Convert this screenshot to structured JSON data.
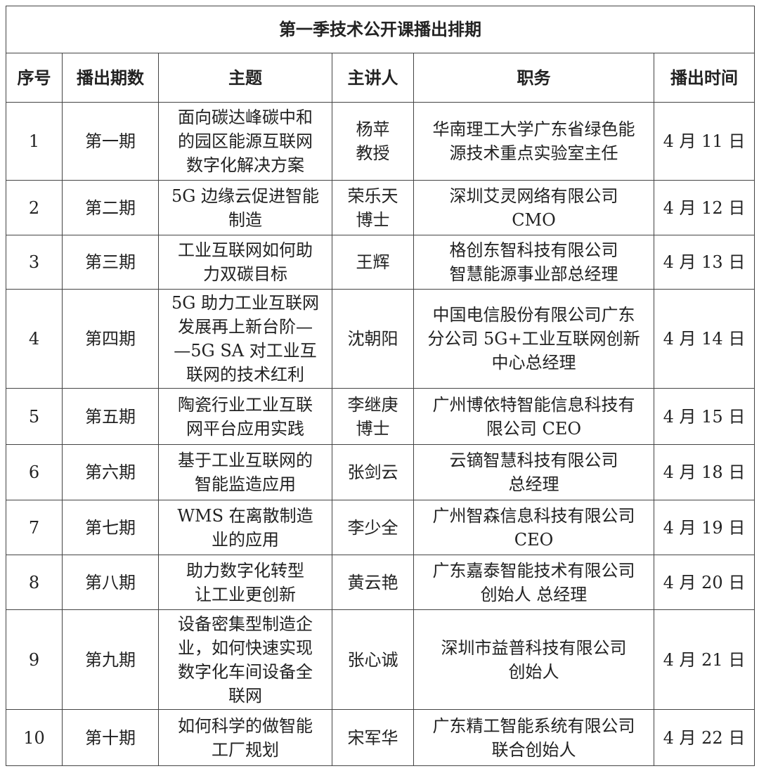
{
  "title": "第一季技术公开课播出排期",
  "headers": [
    "序号",
    "播出期数",
    "主题",
    "主讲人",
    "职务",
    "播出时间"
  ],
  "rows": [
    [
      "1",
      "第一期",
      "面向碳达峰碳中和\n的园区能源互联网\n数字化解决方案",
      "杨苹\n教授",
      "华南理工大学广东省绿色能\n源技术重点实验室主任",
      "4 月 11 日"
    ],
    [
      "2",
      "第二期",
      "5G 边缘云促进智能\n制造",
      "荣乐天\n博士",
      "深圳艾灵网络有限公司\nCMO",
      "4 月 12 日"
    ],
    [
      "3",
      "第三期",
      "工业互联网如何助\n力双碳目标",
      "王辉",
      "格创东智科技有限公司\n智慧能源事业部总经理",
      "4 月 13 日"
    ],
    [
      "4",
      "第四期",
      "5G 助力工业互联网\n发展再上新台阶—\n—5G SA 对工业互\n联网的技术红利",
      "沈朝阳",
      "中国电信股份有限公司广东\n分公司  5G+工业互联网创新\n中心总经理",
      "4 月 14 日"
    ],
    [
      "5",
      "第五期",
      "陶瓷行业工业互联\n网平台应用实践",
      "李继庚\n博士",
      "广州博依特智能信息科技有\n限公司  CEO",
      "4 月 15 日"
    ],
    [
      "6",
      "第六期",
      "基于工业互联网的\n智能监造应用",
      "张剑云",
      "云镝智慧科技有限公司\n总经理",
      "4 月 18 日"
    ],
    [
      "7",
      "第七期",
      "WMS 在离散制造\n业的应用",
      "李少全",
      "广州智森信息科技有限公司\nCEO",
      "4 月 19 日"
    ],
    [
      "8",
      "第八期",
      "助力数字化转型\n让工业更创新",
      "黄云艳",
      "广东嘉泰智能技术有限公司\n创始人  总经理",
      "4 月 20 日"
    ],
    [
      "9",
      "第九期",
      "设备密集型制造企\n业，如何快速实现\n数字化车间设备全\n联网",
      "张心诚",
      "深圳市益普科技有限公司\n创始人",
      "4 月 21 日"
    ],
    [
      "10",
      "第十期",
      "如何科学的做智能\n工厂规划",
      "宋军华",
      "广东精工智能系统有限公司\n联合创始人",
      "4 月 22 日"
    ]
  ]
}
